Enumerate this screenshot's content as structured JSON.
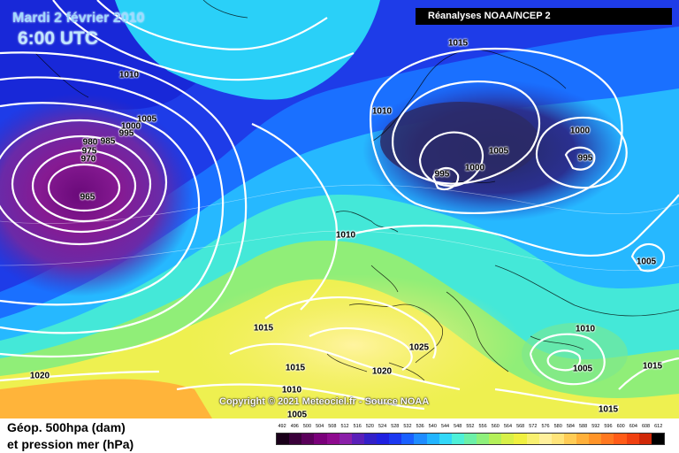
{
  "header": {
    "date": "Mardi 2 février 2010",
    "time": "6:00 UTC",
    "source": "Réanalyses NOAA/NCEP 2"
  },
  "copyright": "Copyright © 2021 Meteociel.fr - Source NOAA",
  "legend": {
    "line1": "Géop. 500hpa (dam)",
    "line2": "et pression mer (hPa)"
  },
  "pressure_labels": [
    "1015",
    "1010",
    "1005",
    "1000",
    "995",
    "985",
    "980",
    "975",
    "970",
    "965",
    "1010",
    "995",
    "1000",
    "1005",
    "1000",
    "995",
    "1010",
    "1005",
    "1015",
    "1025",
    "1015",
    "1020",
    "1020",
    "1010",
    "1005",
    "1010",
    "1005",
    "1015",
    "1015"
  ],
  "color_scale": {
    "ticks": [
      "492",
      "496",
      "500",
      "504",
      "508",
      "512",
      "516",
      "520",
      "524",
      "528",
      "532",
      "536",
      "540",
      "544",
      "548",
      "552",
      "556",
      "560",
      "564",
      "568",
      "572",
      "576",
      "580",
      "584",
      "588",
      "592",
      "596",
      "600",
      "604",
      "608",
      "612"
    ],
    "colors": [
      "#1a001a",
      "#3a003a",
      "#5a005a",
      "#7a007a",
      "#8e0a8e",
      "#8a1fa8",
      "#5a1fb8",
      "#3320c8",
      "#2020e0",
      "#1c38f0",
      "#1a60ff",
      "#1f8cff",
      "#22b4ff",
      "#33d8f8",
      "#4ef0d8",
      "#6cf0a8",
      "#8ef07c",
      "#b4f05a",
      "#d8f048",
      "#f0f040",
      "#f8f070",
      "#fff09c",
      "#ffe47a",
      "#ffcc55",
      "#ffb03a",
      "#ff9428",
      "#ff7820",
      "#ff5c18",
      "#f04010",
      "#d02808",
      "#000000"
    ]
  }
}
